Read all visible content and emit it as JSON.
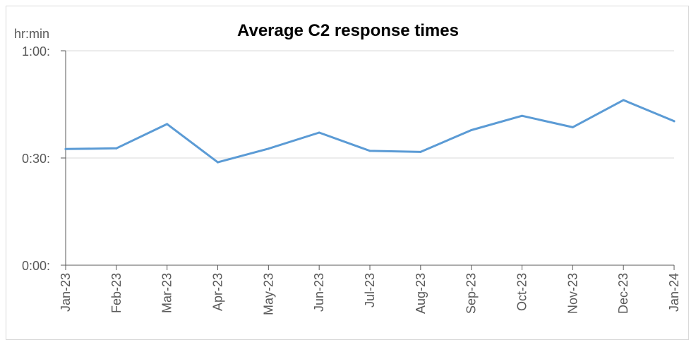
{
  "chart_data": {
    "type": "line",
    "title": "Average C2 response times",
    "unit_label": "hr:min",
    "y_tick_labels": [
      "0:00:",
      "0:30:",
      "1:00:"
    ],
    "y_tick_values": [
      0,
      30,
      60
    ],
    "ylim": [
      0,
      60
    ],
    "y_unit": "minutes",
    "categories": [
      "Jan-23",
      "Feb-23",
      "Mar-23",
      "Apr-23",
      "May-23",
      "Jun-23",
      "Jul-23",
      "Aug-23",
      "Sep-23",
      "Oct-23",
      "Nov-23",
      "Dec-23",
      "Jan-24"
    ],
    "series": [
      {
        "values": [
          32.5,
          32.7,
          39.5,
          28.8,
          32.6,
          37.1,
          32.0,
          31.7,
          37.8,
          41.8,
          38.6,
          46.2,
          40.3
        ],
        "color": "#5b9bd5"
      }
    ],
    "grid": true,
    "legend": "none"
  }
}
